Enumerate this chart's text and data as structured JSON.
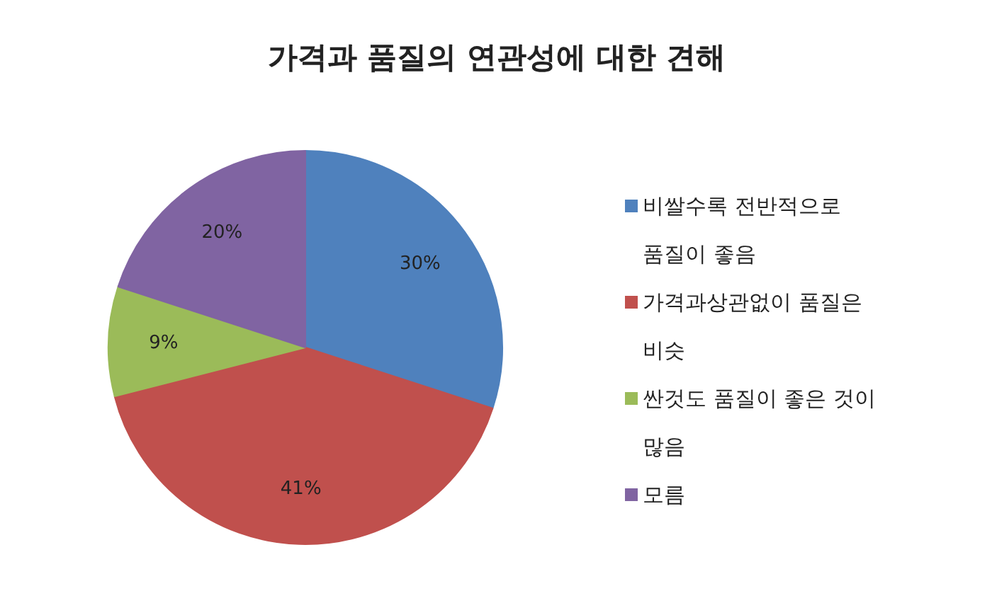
{
  "chart_data": {
    "type": "pie",
    "title": "가격과 품질의 연관성에 대한 견해",
    "categories": [
      "비쌀수록 전반적으로 품질이 좋음",
      "가격과상관없이 품질은 비슷",
      "싼것도 품질이 좋은 것이 많음",
      "모름"
    ],
    "values": [
      30,
      41,
      9,
      20
    ],
    "value_labels": [
      "30%",
      "41%",
      "9%",
      "20%"
    ],
    "colors": [
      "#4f81bd",
      "#c0504d",
      "#9bbb59",
      "#8064a2"
    ],
    "legend": "right"
  }
}
